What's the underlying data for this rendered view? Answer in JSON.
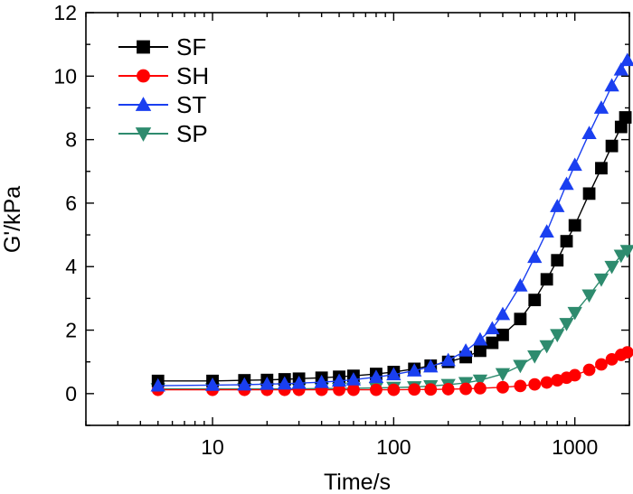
{
  "chart_data": {
    "type": "line",
    "xscale": "log",
    "xlabel": "Time/s",
    "ylabel": "G'/kPa",
    "xlim": [
      2,
      2000
    ],
    "ylim": [
      -1,
      12
    ],
    "xticks": [
      10,
      100,
      1000
    ],
    "xtick_labels": [
      "10",
      "100",
      "1000"
    ],
    "yticks": [
      0,
      2,
      4,
      6,
      8,
      10,
      12
    ],
    "ytick_labels": [
      "0",
      "2",
      "4",
      "6",
      "8",
      "10",
      "12"
    ],
    "legend_position": "top-left",
    "series": [
      {
        "name": "SF",
        "color": "#000000",
        "marker": "square",
        "x": [
          5,
          10,
          15,
          20,
          25,
          30,
          40,
          50,
          60,
          80,
          100,
          130,
          160,
          200,
          250,
          300,
          350,
          400,
          500,
          600,
          700,
          800,
          900,
          1000,
          1200,
          1400,
          1600,
          1800,
          1900
        ],
        "y": [
          0.4,
          0.4,
          0.42,
          0.43,
          0.45,
          0.47,
          0.5,
          0.53,
          0.56,
          0.62,
          0.68,
          0.78,
          0.88,
          1.0,
          1.15,
          1.35,
          1.6,
          1.85,
          2.35,
          2.95,
          3.6,
          4.2,
          4.8,
          5.3,
          6.3,
          7.1,
          7.8,
          8.4,
          8.7
        ]
      },
      {
        "name": "SH",
        "color": "#ff0000",
        "marker": "circle",
        "x": [
          5,
          10,
          15,
          20,
          25,
          30,
          40,
          50,
          60,
          80,
          100,
          130,
          160,
          200,
          250,
          300,
          400,
          500,
          600,
          700,
          800,
          900,
          1000,
          1200,
          1400,
          1600,
          1800,
          1950
        ],
        "y": [
          0.12,
          0.12,
          0.12,
          0.12,
          0.12,
          0.12,
          0.12,
          0.12,
          0.12,
          0.12,
          0.12,
          0.13,
          0.13,
          0.14,
          0.15,
          0.17,
          0.2,
          0.24,
          0.29,
          0.35,
          0.42,
          0.5,
          0.58,
          0.75,
          0.92,
          1.08,
          1.22,
          1.3
        ]
      },
      {
        "name": "ST",
        "color": "#1a3ff0",
        "marker": "triangle-up",
        "x": [
          5,
          10,
          15,
          20,
          25,
          30,
          40,
          50,
          60,
          80,
          100,
          130,
          160,
          200,
          250,
          300,
          350,
          400,
          500,
          600,
          700,
          800,
          900,
          1000,
          1200,
          1400,
          1600,
          1800,
          1950
        ],
        "y": [
          0.25,
          0.27,
          0.28,
          0.3,
          0.31,
          0.33,
          0.36,
          0.4,
          0.44,
          0.52,
          0.6,
          0.72,
          0.85,
          1.05,
          1.35,
          1.7,
          2.05,
          2.5,
          3.4,
          4.3,
          5.1,
          5.9,
          6.6,
          7.2,
          8.2,
          9.0,
          9.7,
          10.2,
          10.5
        ]
      },
      {
        "name": "SP",
        "color": "#2e8b6e",
        "marker": "triangle-down",
        "x": [
          5,
          10,
          15,
          20,
          25,
          30,
          40,
          50,
          60,
          80,
          100,
          130,
          160,
          200,
          250,
          300,
          400,
          500,
          600,
          700,
          800,
          900,
          1000,
          1200,
          1400,
          1600,
          1800,
          1950
        ],
        "y": [
          0.15,
          0.15,
          0.15,
          0.15,
          0.15,
          0.15,
          0.16,
          0.16,
          0.17,
          0.18,
          0.19,
          0.21,
          0.24,
          0.28,
          0.34,
          0.42,
          0.62,
          0.88,
          1.18,
          1.5,
          1.85,
          2.2,
          2.55,
          3.1,
          3.6,
          4.0,
          4.35,
          4.5
        ]
      }
    ]
  }
}
